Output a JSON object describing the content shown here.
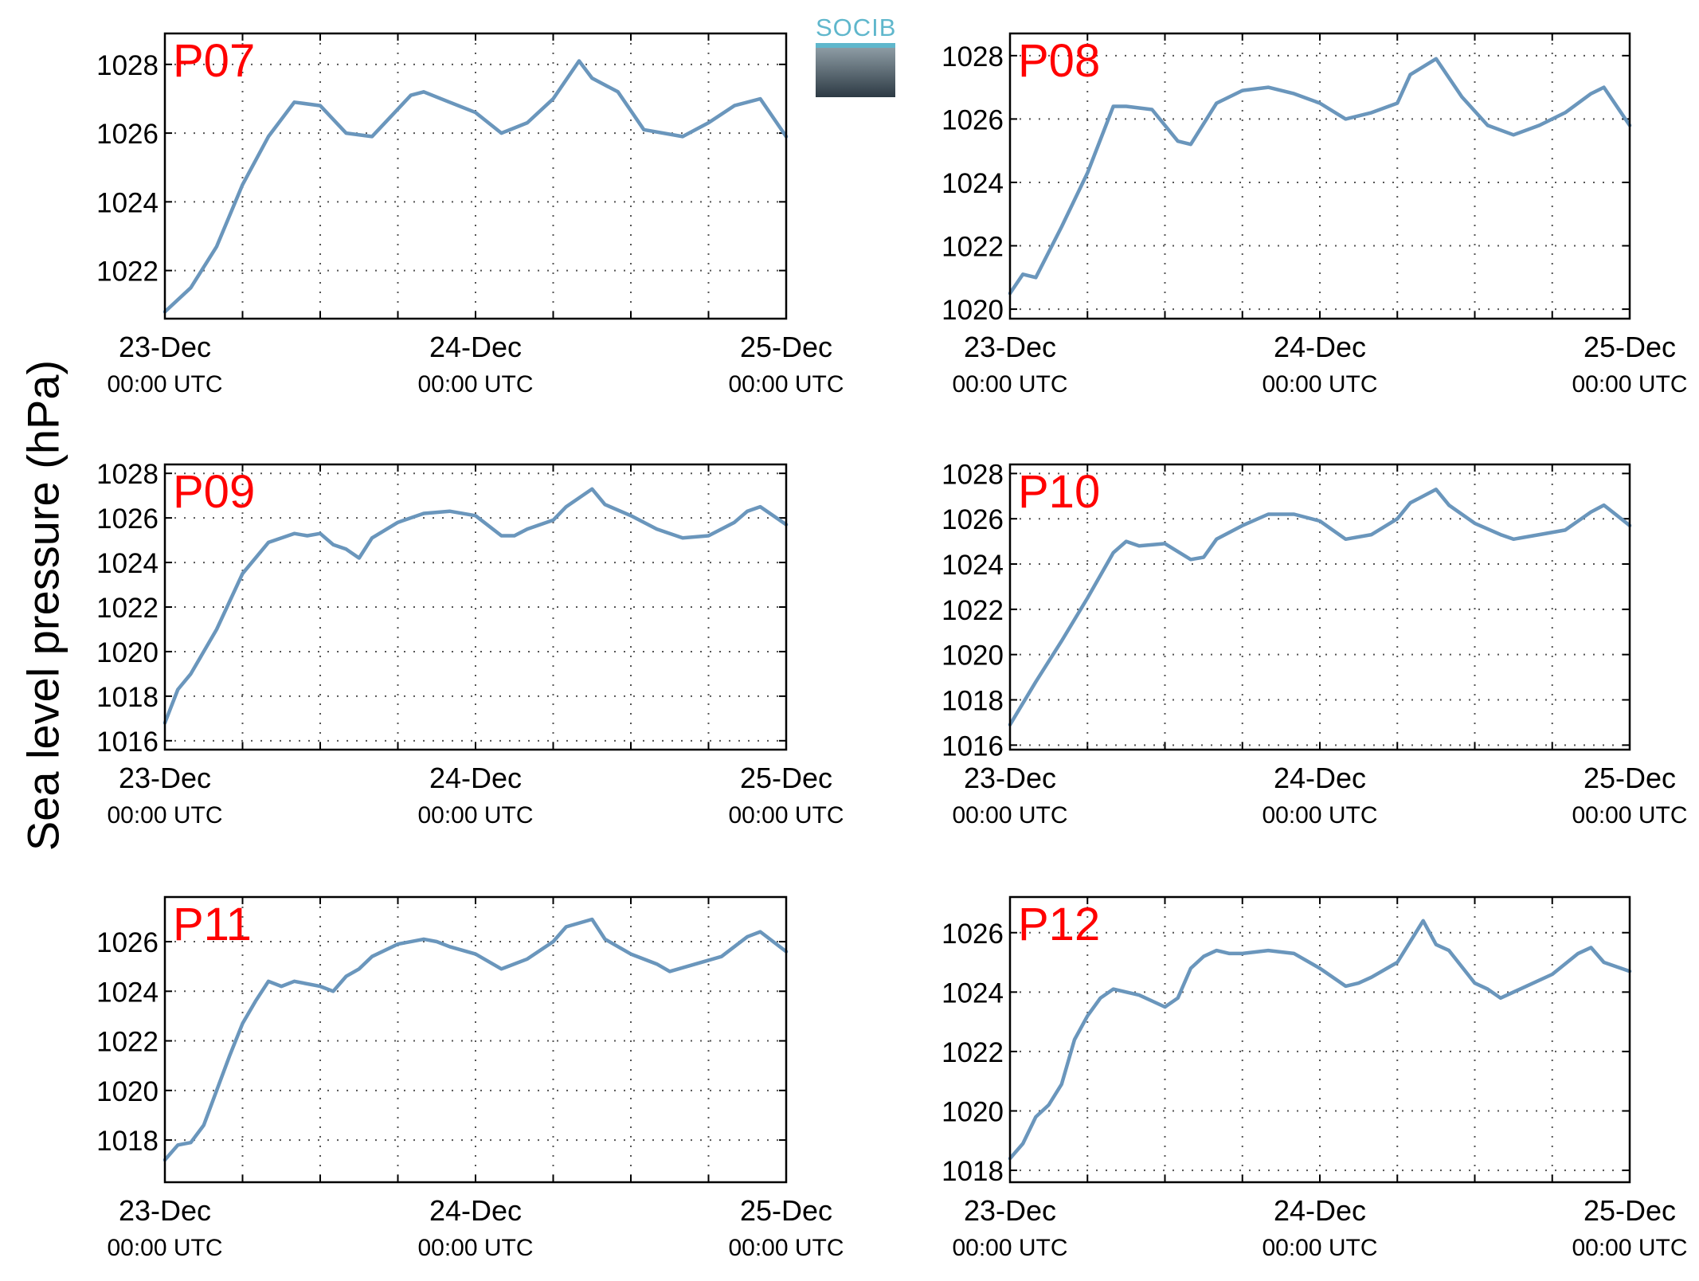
{
  "figure": {
    "ylabel": "Sea level pressure (hPa)"
  },
  "logo": {
    "text": "SOCIB"
  },
  "colors": {
    "line": "#6a96bc",
    "label": "#ff0000",
    "grid": "#555555"
  },
  "chart_data": [
    {
      "type": "line",
      "name": "P07",
      "ylim": [
        1020.6,
        1028.9
      ],
      "yticks": [
        1022,
        1024,
        1026,
        1028
      ],
      "xticks": [
        {
          "date": "23-Dec",
          "time": "00:00 UTC"
        },
        {
          "date": "24-Dec",
          "time": "00:00 UTC"
        },
        {
          "date": "25-Dec",
          "time": "00:00 UTC"
        }
      ],
      "x_hours": [
        0,
        2,
        4,
        6,
        8,
        10,
        12,
        14,
        16,
        18,
        19,
        20,
        22,
        24,
        26,
        28,
        30,
        32,
        33,
        35,
        37,
        40,
        42,
        44,
        46,
        48
      ],
      "values": [
        1020.8,
        1021.5,
        1022.7,
        1024.5,
        1025.9,
        1026.9,
        1026.8,
        1026.0,
        1025.9,
        1026.7,
        1027.1,
        1027.2,
        1026.9,
        1026.6,
        1026.0,
        1026.3,
        1027.0,
        1028.1,
        1027.6,
        1027.2,
        1026.1,
        1025.9,
        1026.3,
        1026.8,
        1027.0,
        1025.9
      ]
    },
    {
      "type": "line",
      "name": "P08",
      "ylim": [
        1019.7,
        1028.7
      ],
      "yticks": [
        1020,
        1022,
        1024,
        1026,
        1028
      ],
      "xticks": [
        {
          "date": "23-Dec",
          "time": "00:00 UTC"
        },
        {
          "date": "24-Dec",
          "time": "00:00 UTC"
        },
        {
          "date": "25-Dec",
          "time": "00:00 UTC"
        }
      ],
      "x_hours": [
        0,
        1,
        2,
        4,
        6,
        8,
        9,
        11,
        13,
        14,
        16,
        18,
        20,
        22,
        24,
        26,
        28,
        30,
        31,
        33,
        35,
        37,
        39,
        41,
        43,
        45,
        46,
        48
      ],
      "values": [
        1020.5,
        1021.1,
        1021.0,
        1022.6,
        1024.3,
        1026.4,
        1026.4,
        1026.3,
        1025.3,
        1025.2,
        1026.5,
        1026.9,
        1027.0,
        1026.8,
        1026.5,
        1026.0,
        1026.2,
        1026.5,
        1027.4,
        1027.9,
        1026.7,
        1025.8,
        1025.5,
        1025.8,
        1026.2,
        1026.8,
        1027.0,
        1025.8
      ]
    },
    {
      "type": "line",
      "name": "P09",
      "ylim": [
        1015.6,
        1028.4
      ],
      "yticks": [
        1016,
        1018,
        1020,
        1022,
        1024,
        1026,
        1028
      ],
      "xticks": [
        {
          "date": "23-Dec",
          "time": "00:00 UTC"
        },
        {
          "date": "24-Dec",
          "time": "00:00 UTC"
        },
        {
          "date": "25-Dec",
          "time": "00:00 UTC"
        }
      ],
      "x_hours": [
        0,
        1,
        2,
        4,
        6,
        8,
        10,
        11,
        12,
        13,
        14,
        15,
        16,
        18,
        20,
        22,
        24,
        26,
        27,
        28,
        30,
        31,
        33,
        34,
        36,
        38,
        40,
        42,
        44,
        45,
        46,
        48
      ],
      "values": [
        1016.8,
        1018.3,
        1019.0,
        1021.0,
        1023.5,
        1024.9,
        1025.3,
        1025.2,
        1025.3,
        1024.8,
        1024.6,
        1024.2,
        1025.1,
        1025.8,
        1026.2,
        1026.3,
        1026.1,
        1025.2,
        1025.2,
        1025.5,
        1025.9,
        1026.5,
        1027.3,
        1026.6,
        1026.1,
        1025.5,
        1025.1,
        1025.2,
        1025.8,
        1026.3,
        1026.5,
        1025.7
      ]
    },
    {
      "type": "line",
      "name": "P10",
      "ylim": [
        1015.8,
        1028.4
      ],
      "yticks": [
        1016,
        1018,
        1020,
        1022,
        1024,
        1026,
        1028
      ],
      "xticks": [
        {
          "date": "23-Dec",
          "time": "00:00 UTC"
        },
        {
          "date": "24-Dec",
          "time": "00:00 UTC"
        },
        {
          "date": "25-Dec",
          "time": "00:00 UTC"
        }
      ],
      "x_hours": [
        0,
        2,
        4,
        6,
        8,
        9,
        10,
        12,
        14,
        15,
        16,
        18,
        20,
        22,
        24,
        26,
        28,
        30,
        31,
        33,
        34,
        36,
        38,
        39,
        41,
        43,
        45,
        46,
        48
      ],
      "values": [
        1016.9,
        1018.8,
        1020.6,
        1022.5,
        1024.5,
        1025.0,
        1024.8,
        1024.9,
        1024.2,
        1024.3,
        1025.1,
        1025.7,
        1026.2,
        1026.2,
        1025.9,
        1025.1,
        1025.3,
        1026.0,
        1026.7,
        1027.3,
        1026.6,
        1025.8,
        1025.3,
        1025.1,
        1025.3,
        1025.5,
        1026.3,
        1026.6,
        1025.7
      ]
    },
    {
      "type": "line",
      "name": "P11",
      "ylim": [
        1016.3,
        1027.8
      ],
      "yticks": [
        1018,
        1020,
        1022,
        1024,
        1026
      ],
      "xticks": [
        {
          "date": "23-Dec",
          "time": "00:00 UTC"
        },
        {
          "date": "24-Dec",
          "time": "00:00 UTC"
        },
        {
          "date": "25-Dec",
          "time": "00:00 UTC"
        }
      ],
      "x_hours": [
        0,
        1,
        2,
        3,
        4,
        5,
        6,
        7,
        8,
        9,
        10,
        12,
        13,
        14,
        15,
        16,
        18,
        20,
        21,
        22,
        24,
        26,
        28,
        30,
        31,
        33,
        34,
        36,
        38,
        39,
        41,
        43,
        45,
        46,
        48
      ],
      "values": [
        1017.2,
        1017.8,
        1017.9,
        1018.6,
        1020.0,
        1021.4,
        1022.7,
        1023.6,
        1024.4,
        1024.2,
        1024.4,
        1024.2,
        1024.0,
        1024.6,
        1024.9,
        1025.4,
        1025.9,
        1026.1,
        1026.0,
        1025.8,
        1025.5,
        1024.9,
        1025.3,
        1026.0,
        1026.6,
        1026.9,
        1026.1,
        1025.5,
        1025.1,
        1024.8,
        1025.1,
        1025.4,
        1026.2,
        1026.4,
        1025.6
      ]
    },
    {
      "type": "line",
      "name": "P12",
      "ylim": [
        1017.6,
        1027.2
      ],
      "yticks": [
        1018,
        1020,
        1022,
        1024,
        1026
      ],
      "xticks": [
        {
          "date": "23-Dec",
          "time": "00:00 UTC"
        },
        {
          "date": "24-Dec",
          "time": "00:00 UTC"
        },
        {
          "date": "25-Dec",
          "time": "00:00 UTC"
        }
      ],
      "x_hours": [
        0,
        1,
        2,
        3,
        4,
        5,
        6,
        7,
        8,
        9,
        10,
        11,
        12,
        13,
        14,
        15,
        16,
        17,
        18,
        20,
        22,
        24,
        26,
        27,
        28,
        30,
        31,
        32,
        33,
        34,
        36,
        37,
        38,
        40,
        42,
        44,
        45,
        46,
        48
      ],
      "values": [
        1018.4,
        1018.9,
        1019.8,
        1020.2,
        1020.9,
        1022.4,
        1023.2,
        1023.8,
        1024.1,
        1024.0,
        1023.9,
        1023.7,
        1023.5,
        1023.8,
        1024.8,
        1025.2,
        1025.4,
        1025.3,
        1025.3,
        1025.4,
        1025.3,
        1024.8,
        1024.2,
        1024.3,
        1024.5,
        1025.0,
        1025.7,
        1026.4,
        1025.6,
        1025.4,
        1024.3,
        1024.1,
        1023.8,
        1024.2,
        1024.6,
        1025.3,
        1025.5,
        1025.0,
        1024.7
      ]
    }
  ]
}
